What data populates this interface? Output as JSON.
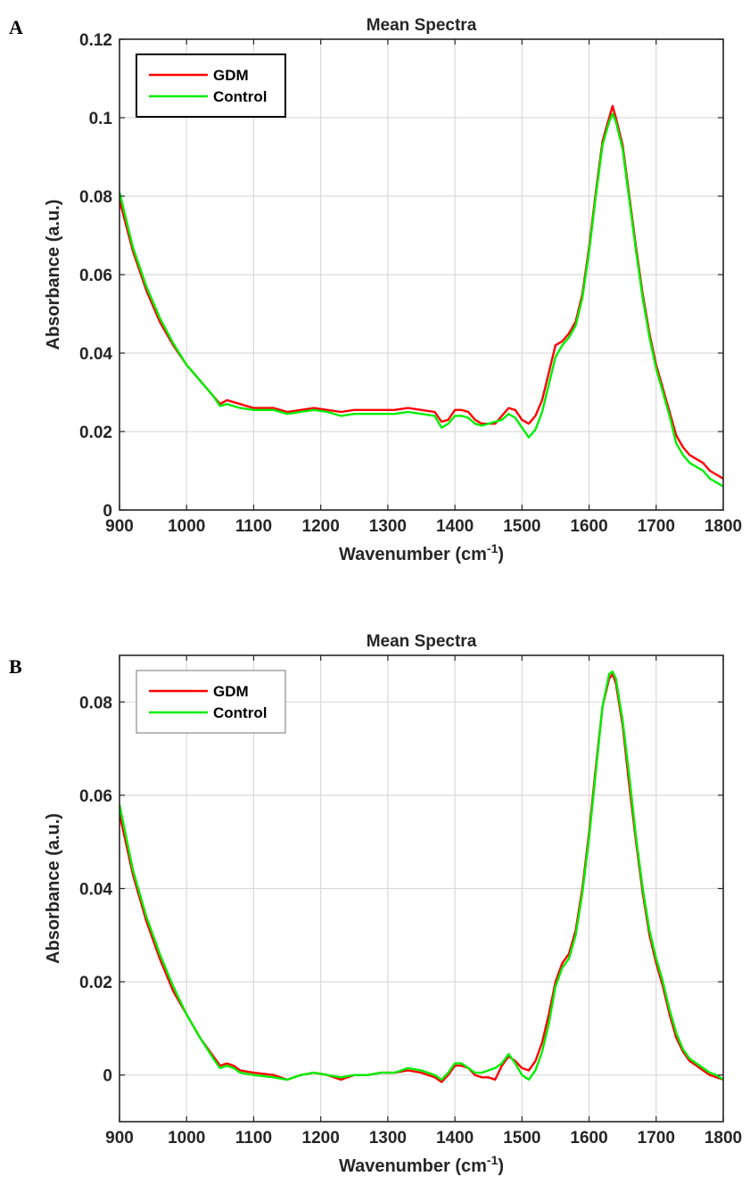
{
  "chart_data": [
    {
      "panel_label": "A",
      "type": "line",
      "title": "Mean Spectra",
      "xlabel": "Wavenumber (cm",
      "xlabel_superscript": "-1",
      "xlabel_suffix": ")",
      "ylabel": "Absorbance (a.u.)",
      "xlim": [
        900,
        1800
      ],
      "ylim": [
        0,
        0.12
      ],
      "xticks": [
        900,
        1000,
        1100,
        1200,
        1300,
        1400,
        1500,
        1600,
        1700,
        1800
      ],
      "yticks": [
        0,
        0.02,
        0.04,
        0.06,
        0.08,
        0.1,
        0.12
      ],
      "ytick_labels": [
        "0",
        "0.02",
        "0.04",
        "0.06",
        "0.08",
        "0.1",
        "0.12"
      ],
      "grid": true,
      "legend_placement": "top-left",
      "series": [
        {
          "name": "GDM",
          "color": "#ff0000",
          "x": [
            900,
            920,
            940,
            960,
            980,
            1000,
            1020,
            1040,
            1050,
            1060,
            1080,
            1100,
            1130,
            1150,
            1170,
            1190,
            1210,
            1230,
            1250,
            1270,
            1290,
            1310,
            1330,
            1350,
            1370,
            1380,
            1390,
            1400,
            1410,
            1420,
            1430,
            1440,
            1450,
            1460,
            1470,
            1480,
            1490,
            1500,
            1510,
            1520,
            1530,
            1540,
            1550,
            1560,
            1570,
            1580,
            1590,
            1600,
            1610,
            1620,
            1630,
            1635,
            1640,
            1650,
            1660,
            1670,
            1680,
            1690,
            1700,
            1710,
            1720,
            1730,
            1740,
            1750,
            1760,
            1770,
            1780,
            1790,
            1800
          ],
          "y": [
            0.079,
            0.066,
            0.056,
            0.048,
            0.042,
            0.037,
            0.033,
            0.029,
            0.027,
            0.028,
            0.027,
            0.026,
            0.026,
            0.025,
            0.0255,
            0.026,
            0.0255,
            0.025,
            0.0255,
            0.0255,
            0.0255,
            0.0255,
            0.026,
            0.0255,
            0.025,
            0.0225,
            0.023,
            0.0255,
            0.0255,
            0.025,
            0.023,
            0.022,
            0.022,
            0.022,
            0.024,
            0.026,
            0.0255,
            0.023,
            0.022,
            0.024,
            0.028,
            0.035,
            0.042,
            0.043,
            0.045,
            0.048,
            0.055,
            0.067,
            0.081,
            0.094,
            0.1,
            0.103,
            0.1,
            0.093,
            0.08,
            0.067,
            0.055,
            0.045,
            0.037,
            0.031,
            0.025,
            0.019,
            0.016,
            0.014,
            0.013,
            0.012,
            0.01,
            0.009,
            0.008
          ]
        },
        {
          "name": "Control",
          "color": "#00ee00",
          "x": [
            900,
            920,
            940,
            960,
            980,
            1000,
            1020,
            1040,
            1050,
            1060,
            1080,
            1100,
            1130,
            1150,
            1170,
            1190,
            1210,
            1230,
            1250,
            1270,
            1290,
            1310,
            1330,
            1350,
            1370,
            1380,
            1390,
            1400,
            1410,
            1420,
            1430,
            1440,
            1450,
            1460,
            1470,
            1480,
            1490,
            1500,
            1510,
            1520,
            1530,
            1540,
            1550,
            1560,
            1570,
            1580,
            1590,
            1600,
            1610,
            1620,
            1630,
            1635,
            1640,
            1650,
            1660,
            1670,
            1680,
            1690,
            1700,
            1710,
            1720,
            1730,
            1740,
            1750,
            1760,
            1770,
            1780,
            1790,
            1800
          ],
          "y": [
            0.081,
            0.067,
            0.057,
            0.049,
            0.0425,
            0.037,
            0.033,
            0.029,
            0.0265,
            0.027,
            0.026,
            0.0255,
            0.0255,
            0.0245,
            0.025,
            0.0255,
            0.025,
            0.024,
            0.0245,
            0.0245,
            0.0245,
            0.0245,
            0.025,
            0.0245,
            0.024,
            0.021,
            0.022,
            0.024,
            0.024,
            0.0235,
            0.022,
            0.0215,
            0.022,
            0.0225,
            0.023,
            0.0245,
            0.0235,
            0.021,
            0.0185,
            0.0205,
            0.025,
            0.032,
            0.039,
            0.042,
            0.044,
            0.047,
            0.054,
            0.066,
            0.08,
            0.093,
            0.099,
            0.101,
            0.099,
            0.092,
            0.079,
            0.066,
            0.054,
            0.044,
            0.036,
            0.03,
            0.024,
            0.017,
            0.014,
            0.012,
            0.011,
            0.01,
            0.008,
            0.007,
            0.006
          ]
        }
      ]
    },
    {
      "panel_label": "B",
      "type": "line",
      "title": "Mean Spectra",
      "xlabel": "Wavenumber (cm",
      "xlabel_superscript": "-1",
      "xlabel_suffix": ")",
      "ylabel": "Absorbance (a.u.)",
      "xlim": [
        900,
        1800
      ],
      "ylim": [
        -0.01,
        0.09
      ],
      "xticks": [
        900,
        1000,
        1100,
        1200,
        1300,
        1400,
        1500,
        1600,
        1700,
        1800
      ],
      "yticks": [
        0,
        0.02,
        0.04,
        0.06,
        0.08
      ],
      "ytick_labels": [
        "0",
        "0.02",
        "0.04",
        "0.06",
        "0.08"
      ],
      "grid": true,
      "legend_placement": "top-left",
      "series": [
        {
          "name": "GDM",
          "color": "#ff0000",
          "x": [
            900,
            920,
            940,
            960,
            980,
            1000,
            1020,
            1040,
            1050,
            1060,
            1070,
            1080,
            1100,
            1130,
            1150,
            1170,
            1190,
            1210,
            1230,
            1250,
            1270,
            1290,
            1310,
            1330,
            1350,
            1370,
            1380,
            1390,
            1400,
            1410,
            1420,
            1430,
            1440,
            1450,
            1460,
            1470,
            1480,
            1490,
            1500,
            1510,
            1520,
            1530,
            1540,
            1550,
            1560,
            1570,
            1580,
            1590,
            1600,
            1610,
            1620,
            1630,
            1635,
            1640,
            1650,
            1660,
            1670,
            1680,
            1690,
            1700,
            1710,
            1720,
            1730,
            1740,
            1750,
            1760,
            1770,
            1780,
            1790,
            1800
          ],
          "y": [
            0.056,
            0.043,
            0.033,
            0.025,
            0.018,
            0.013,
            0.008,
            0.004,
            0.002,
            0.0025,
            0.002,
            0.001,
            0.0005,
            0.0,
            -0.001,
            0.0,
            0.0005,
            0.0,
            -0.001,
            0.0,
            0.0,
            0.0005,
            0.0005,
            0.001,
            0.0005,
            -0.0005,
            -0.0015,
            0.0,
            0.002,
            0.002,
            0.0015,
            0.0,
            -0.0005,
            -0.0005,
            -0.001,
            0.002,
            0.004,
            0.003,
            0.0015,
            0.001,
            0.003,
            0.007,
            0.013,
            0.02,
            0.024,
            0.026,
            0.031,
            0.04,
            0.052,
            0.066,
            0.079,
            0.085,
            0.086,
            0.084,
            0.075,
            0.062,
            0.05,
            0.039,
            0.03,
            0.024,
            0.019,
            0.013,
            0.008,
            0.005,
            0.003,
            0.002,
            0.001,
            0.0,
            -0.0005,
            -0.001
          ]
        },
        {
          "name": "Control",
          "color": "#00ee00",
          "x": [
            900,
            920,
            940,
            960,
            980,
            1000,
            1020,
            1040,
            1050,
            1060,
            1070,
            1080,
            1100,
            1130,
            1150,
            1170,
            1190,
            1210,
            1230,
            1250,
            1270,
            1290,
            1310,
            1330,
            1350,
            1370,
            1380,
            1390,
            1400,
            1410,
            1420,
            1430,
            1440,
            1450,
            1460,
            1470,
            1480,
            1490,
            1500,
            1510,
            1520,
            1530,
            1540,
            1550,
            1560,
            1570,
            1580,
            1590,
            1600,
            1610,
            1620,
            1630,
            1635,
            1640,
            1650,
            1660,
            1670,
            1680,
            1690,
            1700,
            1710,
            1720,
            1730,
            1740,
            1750,
            1760,
            1770,
            1780,
            1790,
            1800
          ],
          "y": [
            0.058,
            0.044,
            0.034,
            0.026,
            0.019,
            0.013,
            0.008,
            0.0035,
            0.0015,
            0.002,
            0.0015,
            0.0005,
            0.0,
            -0.0005,
            -0.001,
            0.0,
            0.0005,
            0.0,
            -0.0005,
            0.0,
            0.0,
            0.0005,
            0.0005,
            0.0015,
            0.001,
            0.0,
            -0.001,
            0.0005,
            0.0025,
            0.0025,
            0.0015,
            0.0005,
            0.0005,
            0.001,
            0.0015,
            0.0025,
            0.0045,
            0.0025,
            0.0,
            -0.001,
            0.001,
            0.005,
            0.011,
            0.019,
            0.023,
            0.025,
            0.03,
            0.039,
            0.051,
            0.065,
            0.079,
            0.086,
            0.0865,
            0.085,
            0.076,
            0.064,
            0.051,
            0.04,
            0.031,
            0.025,
            0.02,
            0.014,
            0.009,
            0.0055,
            0.0035,
            0.0025,
            0.0015,
            0.0005,
            0.0,
            -0.001
          ]
        }
      ]
    }
  ]
}
